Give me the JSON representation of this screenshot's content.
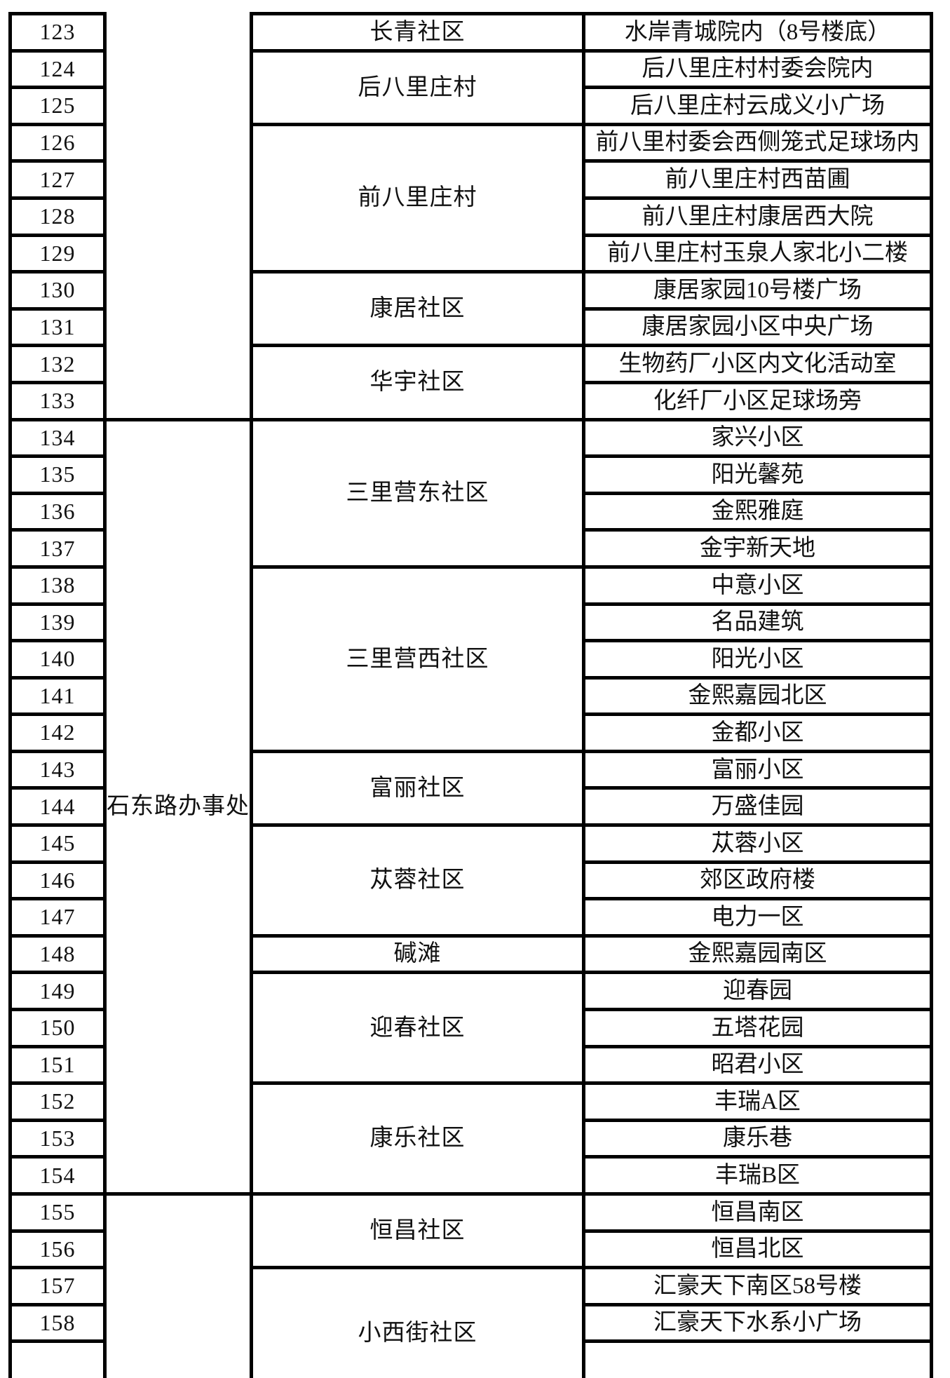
{
  "page": {
    "background_color": "#ffffff",
    "border_color": "#000000",
    "text_color": "#111111"
  },
  "table": {
    "office_cells": [
      {
        "name": "",
        "rows": 11,
        "continues_from_previous_page": true
      },
      {
        "name": "石东路办事处",
        "rows": 21
      },
      {
        "name": "",
        "rows": 4,
        "continues_on_next_page": true
      }
    ],
    "community_cells": [
      {
        "name": "长青社区",
        "rows": 1
      },
      {
        "name": "后八里庄村",
        "rows": 2
      },
      {
        "name": "前八里庄村",
        "rows": 4
      },
      {
        "name": "康居社区",
        "rows": 2
      },
      {
        "name": "华宇社区",
        "rows": 2
      },
      {
        "name": "三里营东社区",
        "rows": 4
      },
      {
        "name": "三里营西社区",
        "rows": 5
      },
      {
        "name": "富丽社区",
        "rows": 2
      },
      {
        "name": "苁蓉社区",
        "rows": 3
      },
      {
        "name": "碱滩",
        "rows": 1
      },
      {
        "name": "迎春社区",
        "rows": 3
      },
      {
        "name": "康乐社区",
        "rows": 3
      },
      {
        "name": "恒昌社区",
        "rows": 2
      },
      {
        "name": "小西街社区",
        "rows": 2,
        "continues_on_next_page": true
      }
    ],
    "rows": [
      {
        "no": "123",
        "location": "水岸青城院内（8号楼底）"
      },
      {
        "no": "124",
        "location": "后八里庄村村委会院内"
      },
      {
        "no": "125",
        "location": "后八里庄村云成义小广场"
      },
      {
        "no": "126",
        "location": "前八里村委会西侧笼式足球场内"
      },
      {
        "no": "127",
        "location": "前八里庄村西苗圃"
      },
      {
        "no": "128",
        "location": "前八里庄村康居西大院"
      },
      {
        "no": "129",
        "location": "前八里庄村玉泉人家北小二楼"
      },
      {
        "no": "130",
        "location": "康居家园10号楼广场"
      },
      {
        "no": "131",
        "location": "康居家园小区中央广场"
      },
      {
        "no": "132",
        "location": "生物药厂小区内文化活动室"
      },
      {
        "no": "133",
        "location": "化纤厂小区足球场旁"
      },
      {
        "no": "134",
        "location": "家兴小区"
      },
      {
        "no": "135",
        "location": "阳光馨苑"
      },
      {
        "no": "136",
        "location": "金熙雅庭"
      },
      {
        "no": "137",
        "location": "金宇新天地"
      },
      {
        "no": "138",
        "location": "中意小区"
      },
      {
        "no": "139",
        "location": "名品建筑"
      },
      {
        "no": "140",
        "location": "阳光小区"
      },
      {
        "no": "141",
        "location": "金熙嘉园北区"
      },
      {
        "no": "142",
        "location": "金都小区"
      },
      {
        "no": "143",
        "location": "富丽小区"
      },
      {
        "no": "144",
        "location": "万盛佳园"
      },
      {
        "no": "145",
        "location": "苁蓉小区"
      },
      {
        "no": "146",
        "location": "郊区政府楼"
      },
      {
        "no": "147",
        "location": "电力一区"
      },
      {
        "no": "148",
        "location": "金熙嘉园南区"
      },
      {
        "no": "149",
        "location": "迎春园"
      },
      {
        "no": "150",
        "location": "五塔花园"
      },
      {
        "no": "151",
        "location": "昭君小区"
      },
      {
        "no": "152",
        "location": "丰瑞A区"
      },
      {
        "no": "153",
        "location": "康乐巷"
      },
      {
        "no": "154",
        "location": "丰瑞B区"
      },
      {
        "no": "155",
        "location": "恒昌南区"
      },
      {
        "no": "156",
        "location": "恒昌北区"
      },
      {
        "no": "157",
        "location": "汇豪天下南区58号楼"
      },
      {
        "no": "158",
        "location": "汇豪天下水系小广场"
      }
    ]
  }
}
